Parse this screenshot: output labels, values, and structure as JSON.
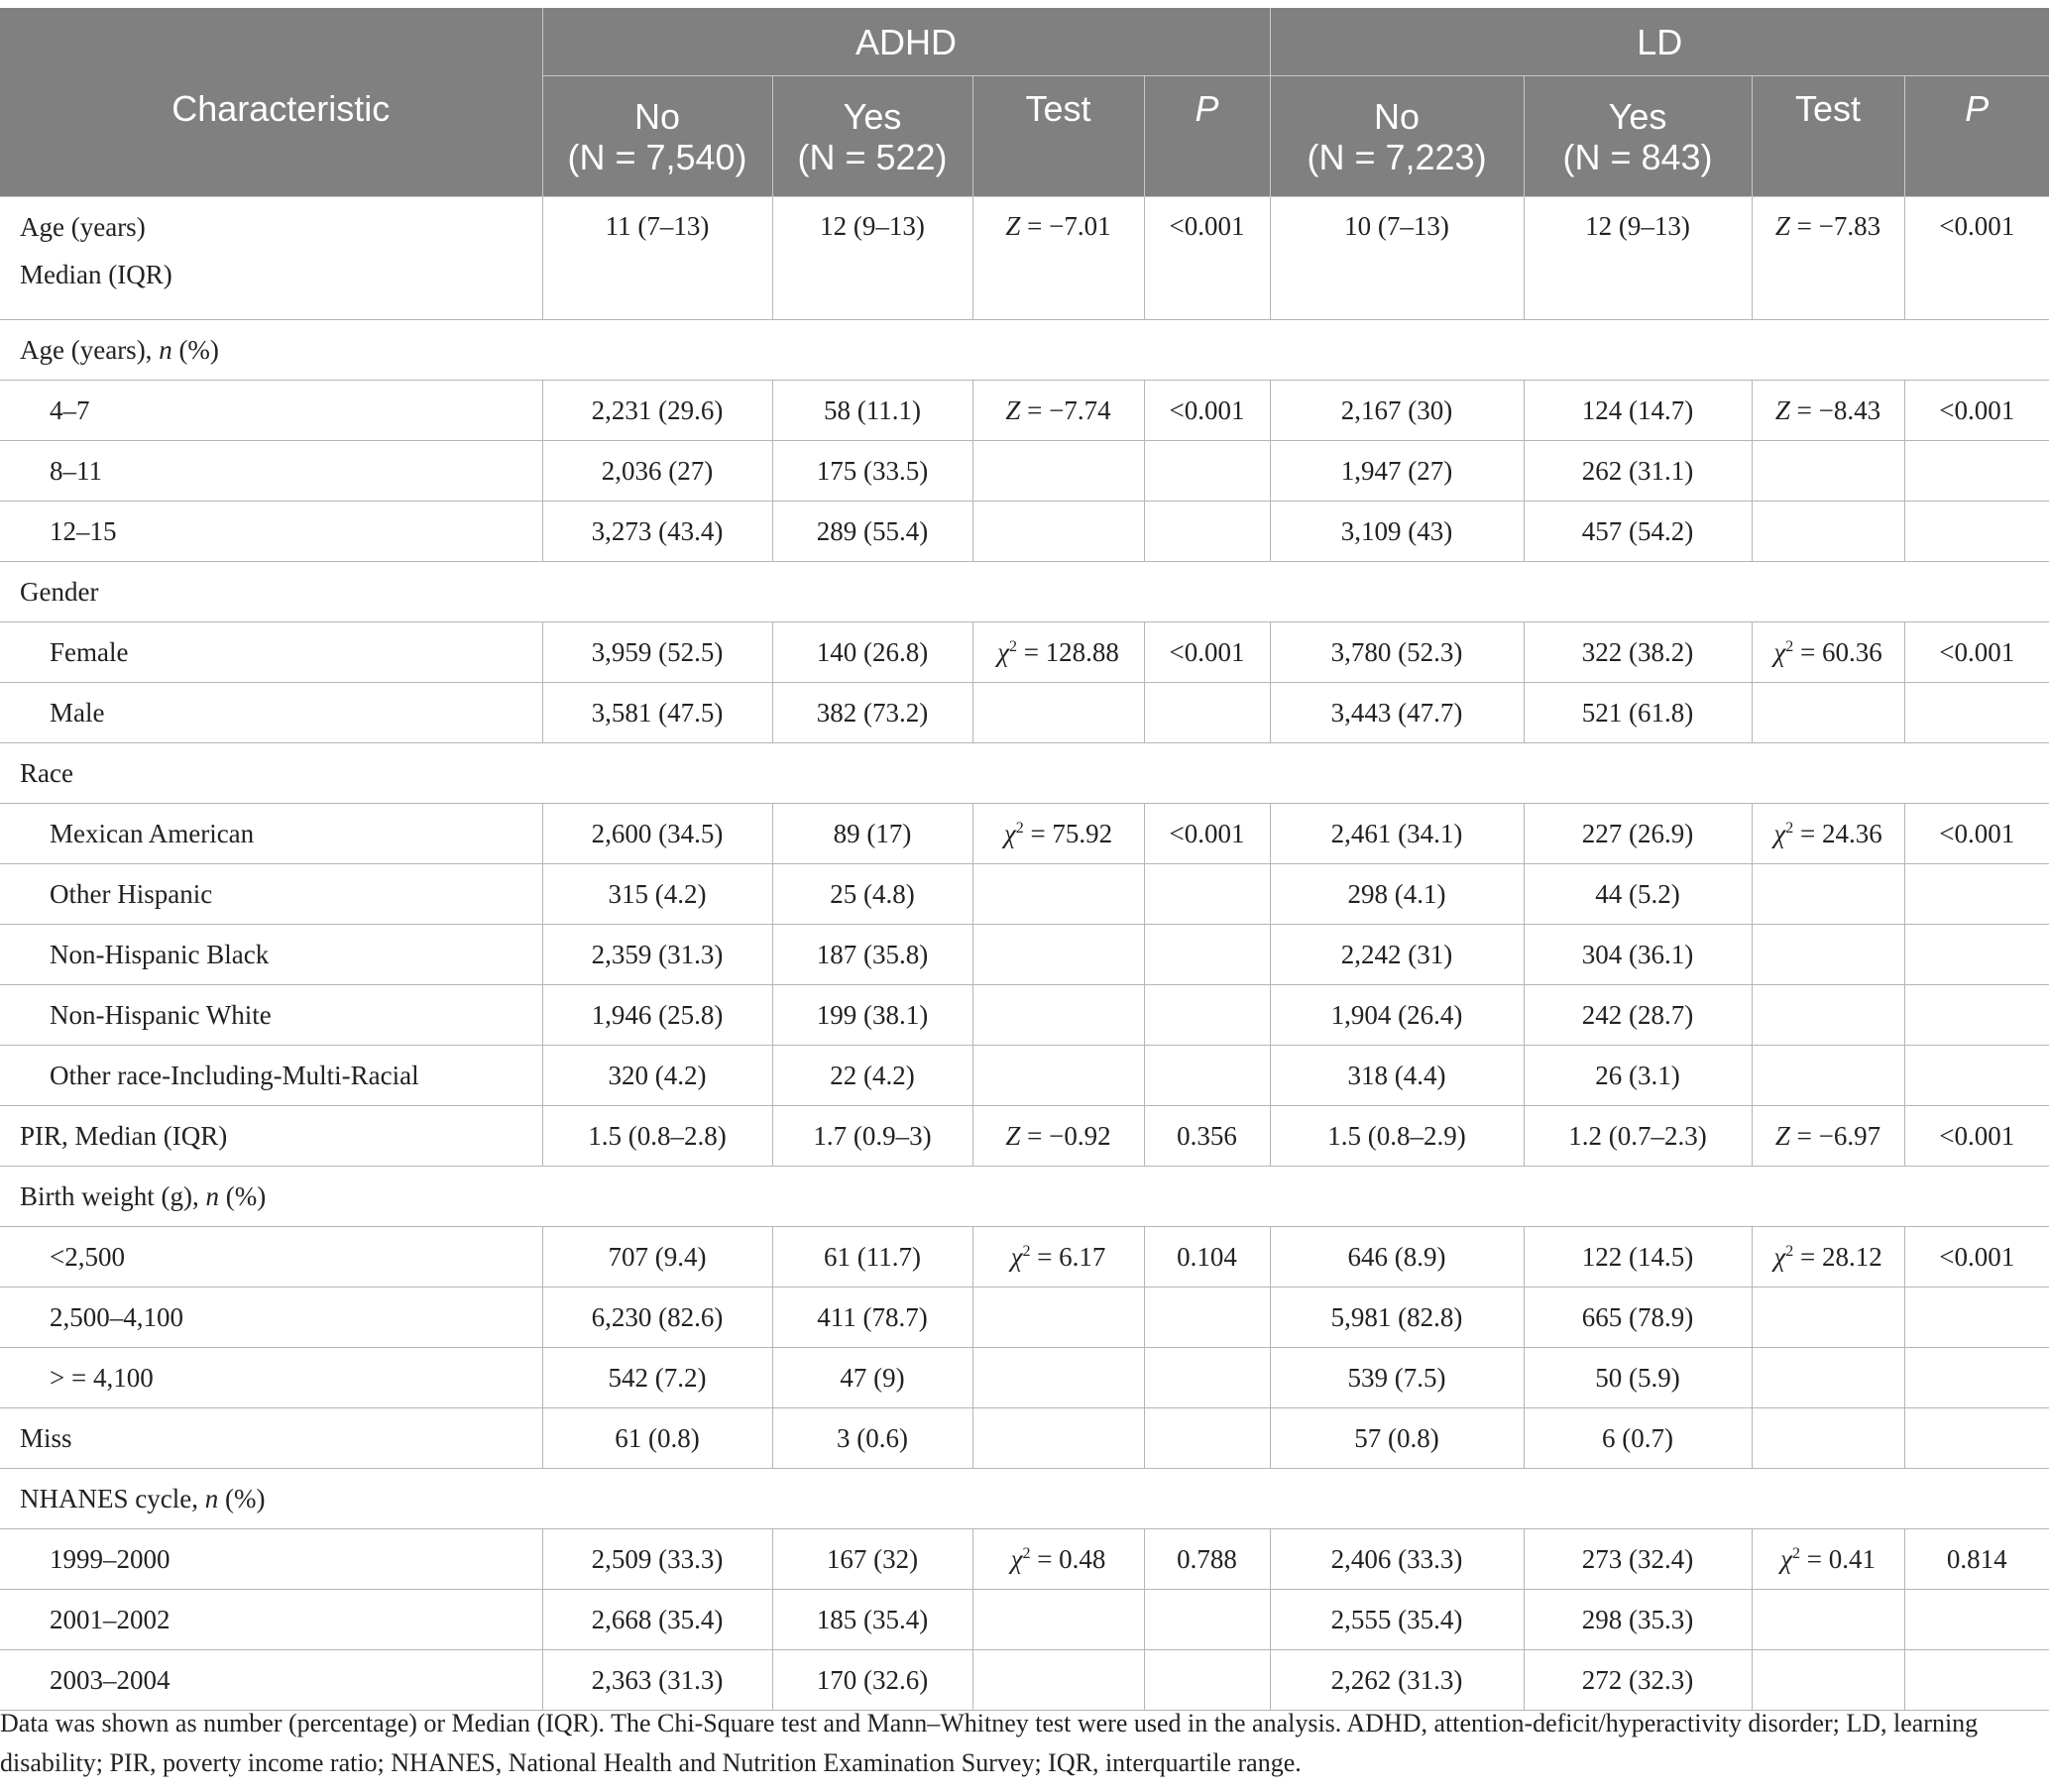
{
  "header": {
    "characteristic": "Characteristic",
    "adhd": "ADHD",
    "ld": "LD",
    "adhd_no_label": "No",
    "adhd_no_n": "(N = 7,540)",
    "adhd_yes_label": "Yes",
    "adhd_yes_n": "(N = 522)",
    "ld_no_label": "No",
    "ld_no_n": "(N = 7,223)",
    "ld_yes_label": "Yes",
    "ld_yes_n": "(N = 843)",
    "test": "Test",
    "p": "P"
  },
  "rows": {
    "age_median": {
      "label1": "Age (years)",
      "label2": "Median (IQR)",
      "adhd_no": "11 (7–13)",
      "adhd_yes": "12 (9–13)",
      "adhd_test_sym": "Z",
      "adhd_test_val": " = −7.01",
      "adhd_p": "<0.001",
      "ld_no": "10 (7–13)",
      "ld_yes": "12 (9–13)",
      "ld_test_sym": "Z",
      "ld_test_val": " = −7.83",
      "ld_p": "<0.001"
    },
    "age_n_header": {
      "label": "Age (years), ",
      "label_it": "n",
      "label_tail": " (%)"
    },
    "age_4_7": {
      "label": "4–7",
      "adhd_no": "2,231 (29.6)",
      "adhd_yes": "58 (11.1)",
      "adhd_test_sym": "Z",
      "adhd_test_val": " = −7.74",
      "adhd_p": "<0.001",
      "ld_no": "2,167 (30)",
      "ld_yes": "124 (14.7)",
      "ld_test_sym": "Z",
      "ld_test_val": " = −8.43",
      "ld_p": "<0.001"
    },
    "age_8_11": {
      "label": "8–11",
      "adhd_no": "2,036 (27)",
      "adhd_yes": "175 (33.5)",
      "ld_no": "1,947 (27)",
      "ld_yes": "262 (31.1)"
    },
    "age_12_15": {
      "label": "12–15",
      "adhd_no": "3,273 (43.4)",
      "adhd_yes": "289 (55.4)",
      "ld_no": "3,109 (43)",
      "ld_yes": "457 (54.2)"
    },
    "gender_header": {
      "label": "Gender"
    },
    "female": {
      "label": "Female",
      "adhd_no": "3,959 (52.5)",
      "adhd_yes": "140 (26.8)",
      "adhd_test_sym": "χ",
      "adhd_test_sup": "2",
      "adhd_test_val": " = 128.88",
      "adhd_p": "<0.001",
      "ld_no": "3,780 (52.3)",
      "ld_yes": "322 (38.2)",
      "ld_test_sym": "χ",
      "ld_test_sup": "2",
      "ld_test_val": " = 60.36",
      "ld_p": "<0.001"
    },
    "male": {
      "label": "Male",
      "adhd_no": "3,581 (47.5)",
      "adhd_yes": "382 (73.2)",
      "ld_no": "3,443 (47.7)",
      "ld_yes": "521 (61.8)"
    },
    "race_header": {
      "label": "Race"
    },
    "mexican": {
      "label": "Mexican American",
      "adhd_no": "2,600 (34.5)",
      "adhd_yes": "89 (17)",
      "adhd_test_sym": "χ",
      "adhd_test_sup": "2",
      "adhd_test_val": " = 75.92",
      "adhd_p": "<0.001",
      "ld_no": "2,461 (34.1)",
      "ld_yes": "227 (26.9)",
      "ld_test_sym": "χ",
      "ld_test_sup": "2",
      "ld_test_val": " = 24.36",
      "ld_p": "<0.001"
    },
    "other_hispanic": {
      "label": "Other Hispanic",
      "adhd_no": "315 (4.2)",
      "adhd_yes": "25 (4.8)",
      "ld_no": "298 (4.1)",
      "ld_yes": "44 (5.2)"
    },
    "nh_black": {
      "label": "Non-Hispanic Black",
      "adhd_no": "2,359 (31.3)",
      "adhd_yes": "187 (35.8)",
      "ld_no": "2,242 (31)",
      "ld_yes": "304 (36.1)"
    },
    "nh_white": {
      "label": "Non-Hispanic White",
      "adhd_no": "1,946 (25.8)",
      "adhd_yes": "199 (38.1)",
      "ld_no": "1,904 (26.4)",
      "ld_yes": "242 (28.7)"
    },
    "other_race": {
      "label": "Other race-Including-Multi-Racial",
      "adhd_no": "320 (4.2)",
      "adhd_yes": "22 (4.2)",
      "ld_no": "318 (4.4)",
      "ld_yes": "26 (3.1)"
    },
    "pir": {
      "label": "PIR, Median (IQR)",
      "adhd_no": "1.5 (0.8–2.8)",
      "adhd_yes": "1.7 (0.9–3)",
      "adhd_test_sym": "Z",
      "adhd_test_val": " = −0.92",
      "adhd_p": "0.356",
      "ld_no": "1.5 (0.8–2.9)",
      "ld_yes": "1.2 (0.7–2.3)",
      "ld_test_sym": "Z",
      "ld_test_val": " = −6.97",
      "ld_p": "<0.001"
    },
    "bw_header": {
      "label": "Birth weight (g), ",
      "label_it": "n",
      "label_tail": " (%)"
    },
    "bw_lt2500": {
      "label": "<2,500",
      "adhd_no": "707 (9.4)",
      "adhd_yes": "61 (11.7)",
      "adhd_test_sym": "χ",
      "adhd_test_sup": "2",
      "adhd_test_val": " = 6.17",
      "adhd_p": "0.104",
      "ld_no": "646 (8.9)",
      "ld_yes": "122 (14.5)",
      "ld_test_sym": "χ",
      "ld_test_sup": "2",
      "ld_test_val": " = 28.12",
      "ld_p": "<0.001"
    },
    "bw_2500_4100": {
      "label": "2,500–4,100",
      "adhd_no": "6,230 (82.6)",
      "adhd_yes": "411 (78.7)",
      "ld_no": "5,981 (82.8)",
      "ld_yes": "665 (78.9)"
    },
    "bw_ge4100": {
      "label": "> = 4,100",
      "adhd_no": "542 (7.2)",
      "adhd_yes": "47 (9)",
      "ld_no": "539 (7.5)",
      "ld_yes": "50 (5.9)"
    },
    "miss": {
      "label": "Miss",
      "adhd_no": "61 (0.8)",
      "adhd_yes": "3 (0.6)",
      "ld_no": "57 (0.8)",
      "ld_yes": "6 (0.7)"
    },
    "cycle_header": {
      "label": "NHANES cycle, ",
      "label_it": "n",
      "label_tail": " (%)"
    },
    "c1999": {
      "label": "1999–2000",
      "adhd_no": "2,509 (33.3)",
      "adhd_yes": "167 (32)",
      "adhd_test_sym": "χ",
      "adhd_test_sup": "2",
      "adhd_test_val": " = 0.48",
      "adhd_p": "0.788",
      "ld_no": "2,406 (33.3)",
      "ld_yes": "273 (32.4)",
      "ld_test_sym": "χ",
      "ld_test_sup": "2",
      "ld_test_val": " = 0.41",
      "ld_p": "0.814"
    },
    "c2001": {
      "label": "2001–2002",
      "adhd_no": "2,668 (35.4)",
      "adhd_yes": "185 (35.4)",
      "ld_no": "2,555 (35.4)",
      "ld_yes": "298 (35.3)"
    },
    "c2003": {
      "label": "2003–2004",
      "adhd_no": "2,363 (31.3)",
      "adhd_yes": "170 (32.6)",
      "ld_no": "2,262 (31.3)",
      "ld_yes": "272 (32.3)"
    }
  },
  "footnote": "Data was shown as number (percentage) or Median (IQR). The Chi-Square test and Mann–Whitney test were used in the analysis. ADHD, attention-deficit/hyperactivity disorder; LD, learning disability; PIR, poverty income ratio; NHANES, National Health and Nutrition Examination Survey; IQR, interquartile range."
}
